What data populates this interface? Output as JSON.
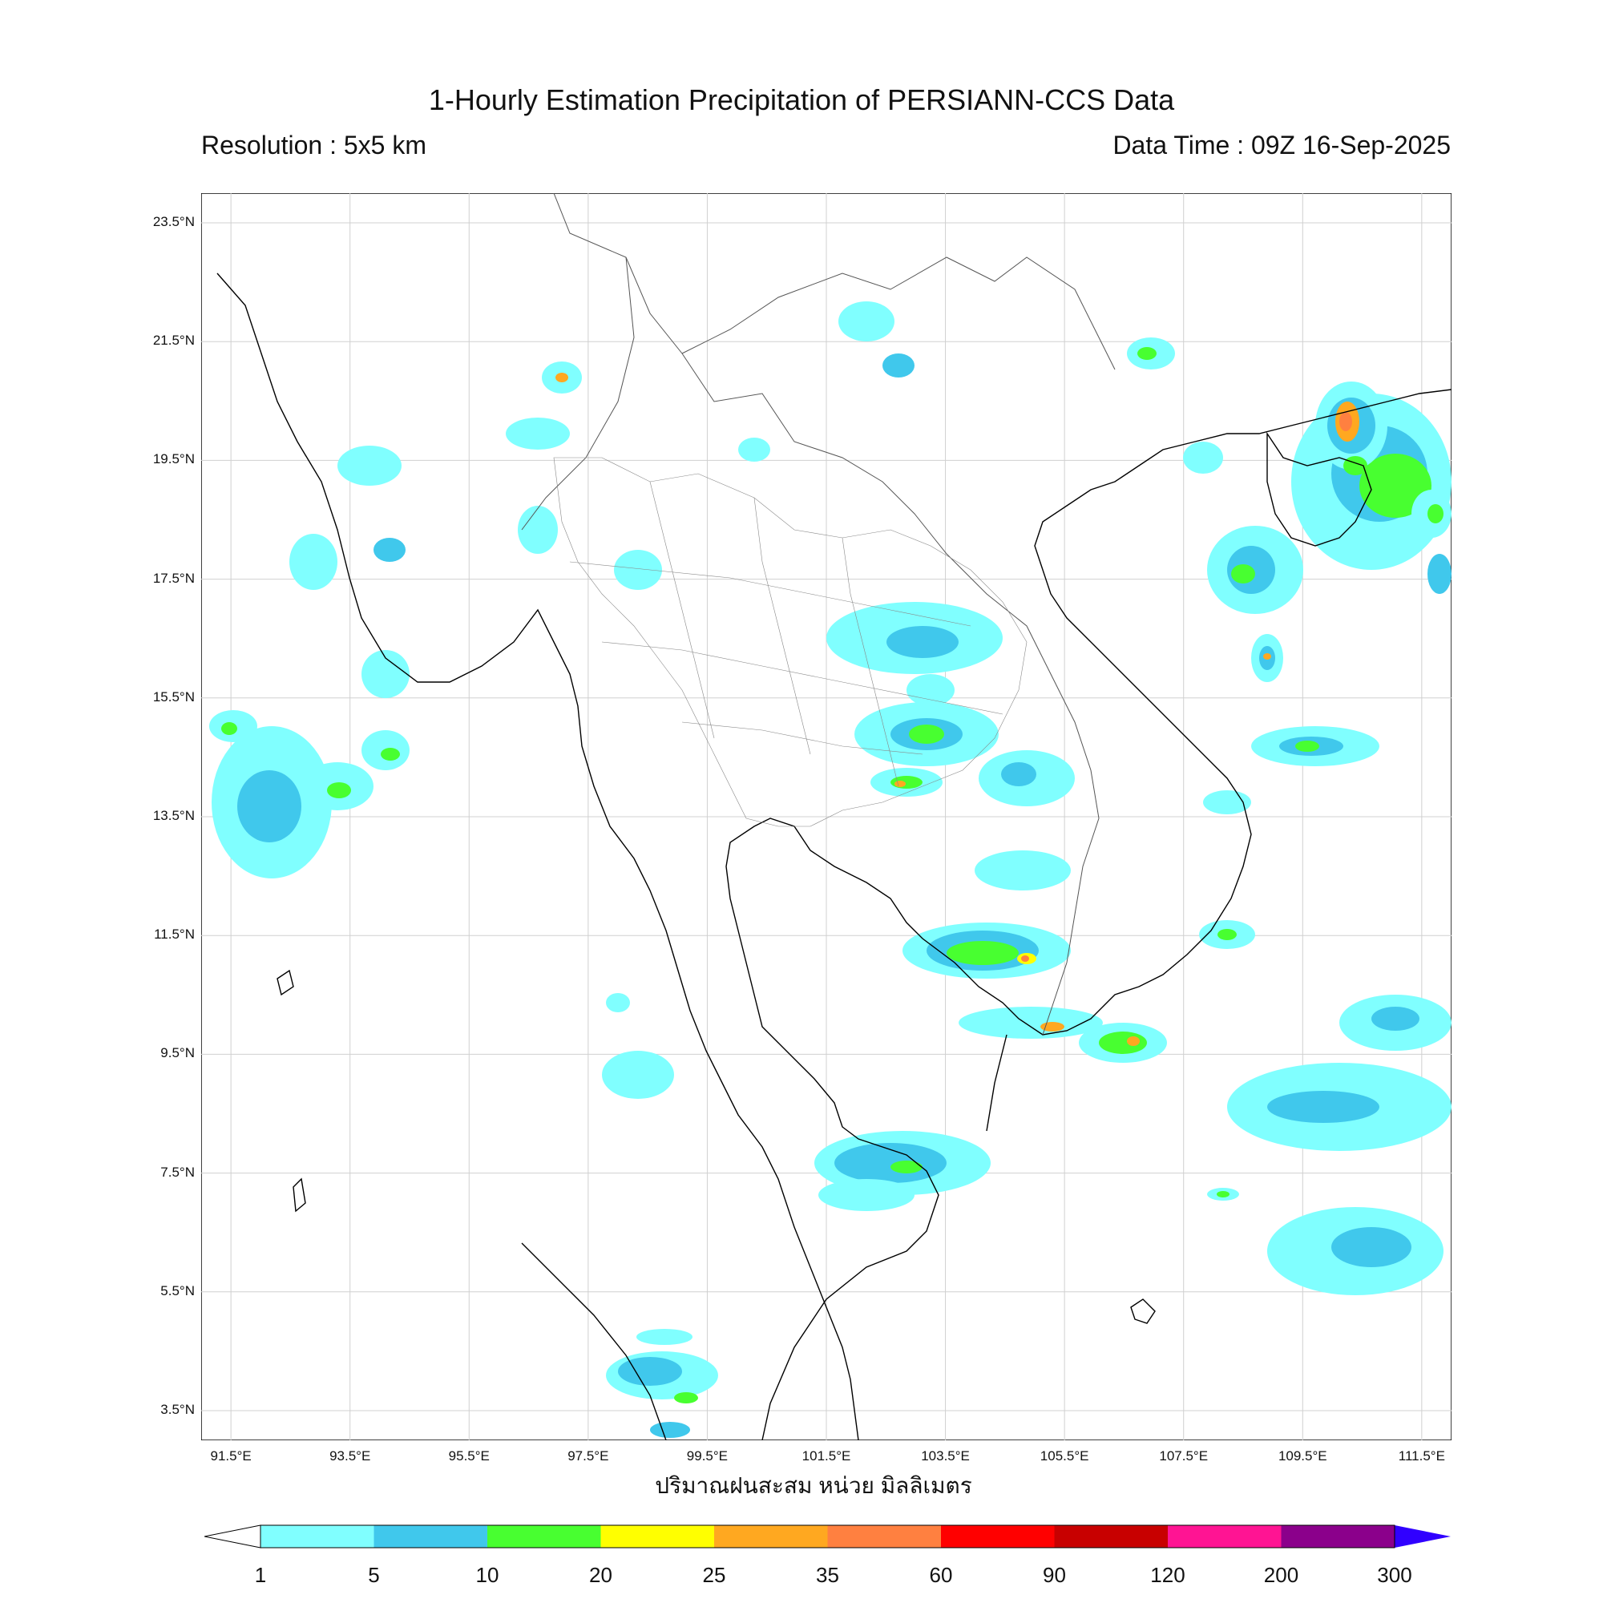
{
  "header": {
    "title": "1-Hourly Estimation Precipitation of PERSIANN-CCS Data",
    "resolution": "Resolution : 5x5 km",
    "data_time": "Data Time : 09Z 16-Sep-2025"
  },
  "map": {
    "lat_labels": [
      "23.5°N",
      "21.5°N",
      "19.5°N",
      "17.5°N",
      "15.5°N",
      "13.5°N",
      "11.5°N",
      "9.5°N",
      "7.5°N",
      "5.5°N",
      "3.5°N"
    ],
    "lon_labels": [
      "91.5°E",
      "93.5°E",
      "95.5°E",
      "97.5°E",
      "99.5°E",
      "101.5°E",
      "103.5°E",
      "105.5°E",
      "107.5°E",
      "109.5°E",
      "111.5°E"
    ],
    "lat_range": [
      3.0,
      24.0
    ],
    "lon_range": [
      91.0,
      112.0
    ],
    "xlabel": "ปริมาณฝนสะสม หน่วย มิลลิเมตร"
  },
  "colorbar": {
    "levels": [
      "1",
      "5",
      "10",
      "20",
      "25",
      "35",
      "60",
      "90",
      "120",
      "200",
      "300"
    ],
    "colors": [
      "#ffffff",
      "#80ffff",
      "#40c8ec",
      "#48ff30",
      "#ffff00",
      "#ffa820",
      "#ff8040",
      "#ff0000",
      "#c80000",
      "#ff1493",
      "#8b008b",
      "#3000ff"
    ]
  }
}
